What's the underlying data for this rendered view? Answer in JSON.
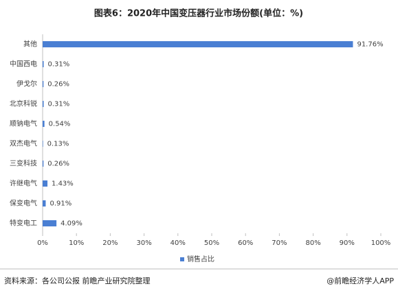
{
  "chart_data": {
    "type": "bar",
    "orientation": "horizontal",
    "title": "图表6：2020年中国变压器行业市场份额(单位：%)",
    "categories": [
      "其他",
      "中国西电",
      "伊戈尔",
      "北京科锐",
      "顺钠电气",
      "双杰电气",
      "三变科技",
      "许继电气",
      "保变电气",
      "特变电工"
    ],
    "series": [
      {
        "name": "销售占比",
        "color": "#4a7fd3",
        "values": [
          91.76,
          0.31,
          0.26,
          0.31,
          0.54,
          0.13,
          0.26,
          1.43,
          0.91,
          4.09
        ],
        "value_labels": [
          "91.76%",
          "0.31%",
          "0.26%",
          "0.31%",
          "0.54%",
          "0.13%",
          "0.26%",
          "1.43%",
          "0.91%",
          "4.09%"
        ]
      }
    ],
    "xlim": [
      0,
      100
    ],
    "xticks": [
      {
        "value": 0,
        "label": "0%"
      },
      {
        "value": 10,
        "label": "10%"
      },
      {
        "value": 20,
        "label": "20%"
      },
      {
        "value": 30,
        "label": "30%"
      },
      {
        "value": 40,
        "label": "40%"
      },
      {
        "value": 50,
        "label": "50%"
      },
      {
        "value": 60,
        "label": "60%"
      },
      {
        "value": 70,
        "label": "70%"
      },
      {
        "value": 80,
        "label": "80%"
      },
      {
        "value": 90,
        "label": "90%"
      },
      {
        "value": 100,
        "label": "100%"
      }
    ],
    "legend": "bottom",
    "source": "资料来源：各公司公报 前瞻产业研究院整理",
    "credit": "@前瞻经济学人APP"
  }
}
